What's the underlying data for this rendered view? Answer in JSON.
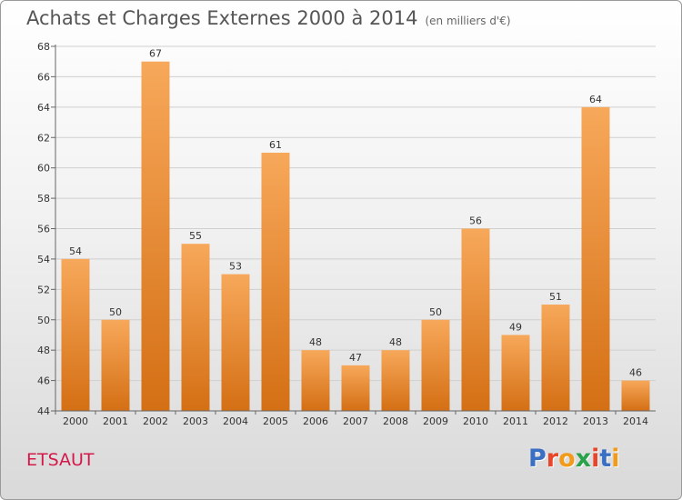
{
  "header": {
    "title": "Achats et Charges Externes 2000 à 2014",
    "subtitle": "(en milliers d'€)"
  },
  "footer": {
    "commune": "ETSAUT",
    "logo_text": "Proxiti",
    "logo_colors": [
      "#3a6fc4",
      "#e8462a",
      "#f29a1a",
      "#2aa24a",
      "#e8462a",
      "#3a6fc4",
      "#f29a1a"
    ]
  },
  "colors": {
    "bar_top": "#f7a85a",
    "bar_bottom": "#d46f14",
    "grid": "#cfcfcf",
    "axis": "#666666"
  },
  "chart_data": {
    "type": "bar",
    "title": "Achats et Charges Externes 2000 à 2014",
    "subtitle": "(en milliers d'€)",
    "categories": [
      "2000",
      "2001",
      "2002",
      "2003",
      "2004",
      "2005",
      "2006",
      "2007",
      "2008",
      "2009",
      "2010",
      "2011",
      "2012",
      "2013",
      "2014"
    ],
    "values": [
      54,
      50,
      67,
      55,
      53,
      61,
      48,
      47,
      48,
      50,
      56,
      49,
      51,
      64,
      46
    ],
    "ylim": [
      44,
      68
    ],
    "yticks": [
      44,
      46,
      48,
      50,
      52,
      54,
      56,
      58,
      60,
      62,
      64,
      66,
      68
    ],
    "grid": true,
    "legend": "none"
  }
}
